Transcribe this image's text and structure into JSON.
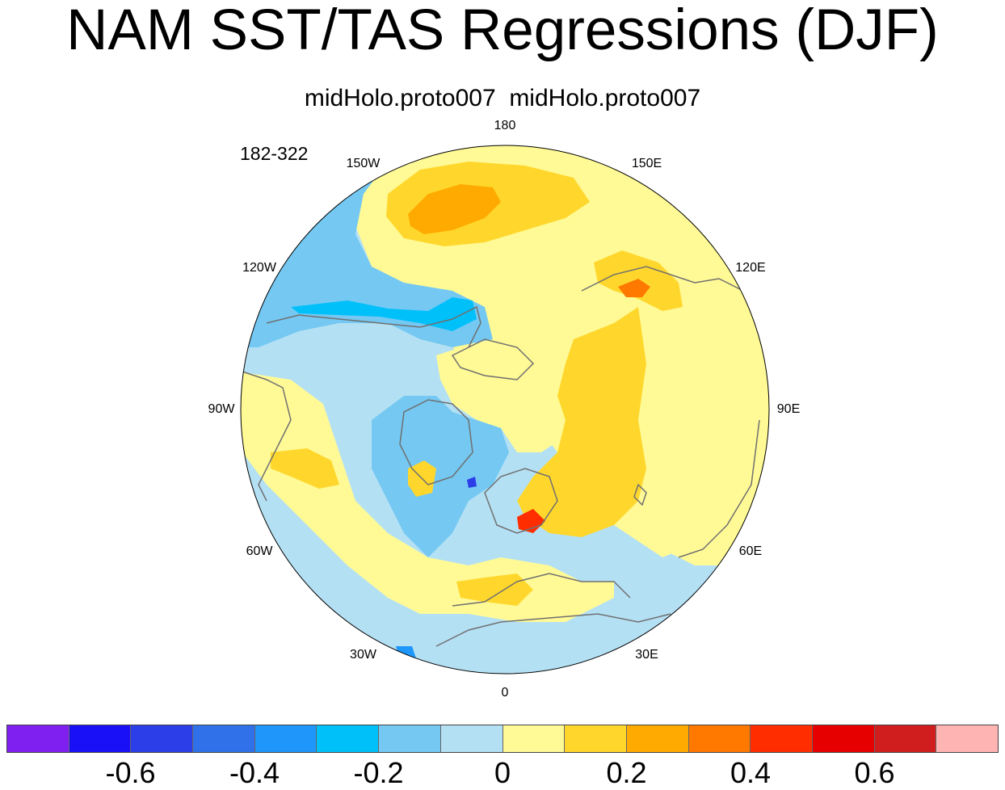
{
  "title": "NAM SST/TAS Regressions (DJF)",
  "subtitle": "midHolo.proto007  midHolo.proto007",
  "time_range": "182-322",
  "map": {
    "projection": "north-polar-stereographic",
    "center_lat": 90,
    "longitude_labels": [
      {
        "id": "lon-180",
        "text": "180",
        "lon": 180
      },
      {
        "id": "lon-150e",
        "text": "150E",
        "lon": 150
      },
      {
        "id": "lon-120e",
        "text": "120E",
        "lon": 120
      },
      {
        "id": "lon-90e",
        "text": "90E",
        "lon": 90
      },
      {
        "id": "lon-60e",
        "text": "60E",
        "lon": 60
      },
      {
        "id": "lon-30e",
        "text": "30E",
        "lon": 30
      },
      {
        "id": "lon-0",
        "text": "0",
        "lon": 0
      },
      {
        "id": "lon-30w",
        "text": "30W",
        "lon": -30
      },
      {
        "id": "lon-60w",
        "text": "60W",
        "lon": -60
      },
      {
        "id": "lon-90w",
        "text": "90W",
        "lon": -90
      },
      {
        "id": "lon-120w",
        "text": "120W",
        "lon": -120
      },
      {
        "id": "lon-150w",
        "text": "150W",
        "lon": -150
      }
    ],
    "field": "regression coefficient",
    "coastline_color": "#707070"
  },
  "colorbar": {
    "boxes": [
      {
        "color": "#8020f0"
      },
      {
        "color": "#1a10f8"
      },
      {
        "color": "#2c3ee8"
      },
      {
        "color": "#3070e8"
      },
      {
        "color": "#1e96fa"
      },
      {
        "color": "#00c0fa"
      },
      {
        "color": "#74c8f2"
      },
      {
        "color": "#b4e0f4"
      },
      {
        "color": "#fffa96"
      },
      {
        "color": "#ffd72c"
      },
      {
        "color": "#ffaa00"
      },
      {
        "color": "#ff7800"
      },
      {
        "color": "#ff2d00"
      },
      {
        "color": "#e60000"
      },
      {
        "color": "#d01e1e"
      },
      {
        "color": "#ffb4b4"
      }
    ],
    "labels": [
      {
        "text": "-0.6",
        "value": -0.6
      },
      {
        "text": "-0.4",
        "value": -0.4
      },
      {
        "text": "-0.2",
        "value": -0.2
      },
      {
        "text": "0",
        "value": 0
      },
      {
        "text": "0.2",
        "value": 0.2
      },
      {
        "text": "0.4",
        "value": 0.4
      },
      {
        "text": "0.6",
        "value": 0.6
      }
    ],
    "min_level": -0.7,
    "level_step": 0.1
  }
}
